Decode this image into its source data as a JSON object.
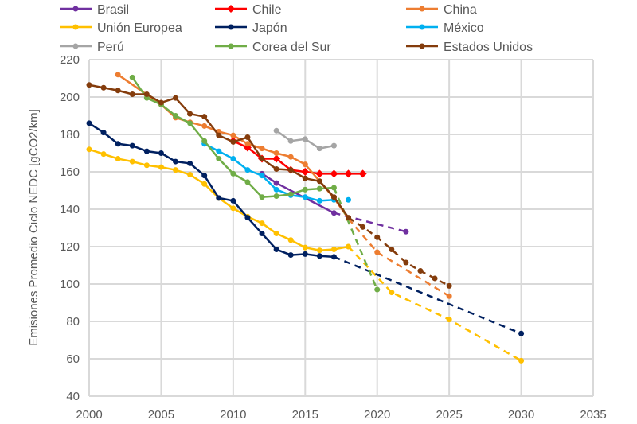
{
  "chart_data": {
    "type": "line",
    "title": "",
    "xlabel": "",
    "ylabel": "Emisiones Promedio Ciclo NEDC [gCO2/km]",
    "xlim": [
      2000,
      2035
    ],
    "ylim": [
      40,
      220
    ],
    "xticks": [
      "2000",
      "2005",
      "2010",
      "2015",
      "2020",
      "2025",
      "2030",
      "2035"
    ],
    "yticks": [
      "40",
      "60",
      "80",
      "100",
      "120",
      "140",
      "160",
      "180",
      "200",
      "220"
    ],
    "grid": true,
    "legend_position": "top",
    "series": [
      {
        "name": "Brasil",
        "color": "#7030A0",
        "marker": "circle",
        "x": [
          2012,
          2013,
          2017
        ],
        "values": [
          159,
          154,
          138
        ],
        "projection_x": [
          2017,
          2022
        ],
        "projection": [
          138,
          128
        ]
      },
      {
        "name": "Chile",
        "color": "#FF0000",
        "marker": "diamond",
        "x": [
          2010,
          2011,
          2012,
          2013,
          2014,
          2015,
          2016,
          2017,
          2018,
          2019
        ],
        "values": [
          176.5,
          173,
          167,
          167,
          161,
          160,
          159,
          159,
          159,
          159
        ]
      },
      {
        "name": "China",
        "color": "#ED7D31",
        "marker": "circle",
        "x": [
          2002,
          2005,
          2006,
          2007,
          2008,
          2009,
          2010,
          2011,
          2012,
          2013,
          2014,
          2015,
          2017,
          2018
        ],
        "values": [
          212,
          196,
          189,
          186.5,
          184.5,
          181.5,
          179.5,
          175,
          172.5,
          170,
          168,
          164,
          146,
          135
        ],
        "projection_x": [
          2018,
          2020,
          2025
        ],
        "projection": [
          135,
          117,
          93.5
        ]
      },
      {
        "name": "Unión Europea",
        "color": "#FFC000",
        "marker": "circle",
        "x": [
          2000,
          2001,
          2002,
          2003,
          2004,
          2005,
          2006,
          2007,
          2008,
          2009,
          2010,
          2011,
          2012,
          2013,
          2014,
          2015,
          2016,
          2017,
          2018
        ],
        "values": [
          172,
          169.5,
          167,
          165.5,
          163.5,
          162.5,
          161,
          158.5,
          153.5,
          146,
          140.5,
          136,
          132.5,
          127,
          123.5,
          119.5,
          118,
          118.5,
          120
        ],
        "projection_x": [
          2018,
          2021,
          2025,
          2030
        ],
        "projection": [
          120,
          95.5,
          81,
          59
        ]
      },
      {
        "name": "Japón",
        "color": "#002060",
        "marker": "circle",
        "x": [
          2000,
          2001,
          2002,
          2003,
          2004,
          2005,
          2006,
          2007,
          2008,
          2009,
          2010,
          2011,
          2012,
          2013,
          2014,
          2015,
          2016,
          2017
        ],
        "values": [
          186,
          181,
          175,
          174,
          171,
          170,
          165.5,
          164.5,
          158,
          146,
          144.5,
          135.5,
          127,
          118.5,
          115.5,
          116,
          115,
          114.5
        ],
        "projection_x": [
          2017,
          2030
        ],
        "projection": [
          114.5,
          73.5
        ]
      },
      {
        "name": "México",
        "color": "#00B0F0",
        "marker": "circle",
        "x": [
          2008,
          2009,
          2010,
          2011,
          2012,
          2013,
          2014,
          2015,
          2016,
          2017
        ],
        "values": [
          175,
          171,
          167,
          161,
          158,
          150.5,
          147.5,
          146.5,
          144.5,
          145
        ],
        "extra_x": [
          2018
        ],
        "extra": [
          145
        ]
      },
      {
        "name": "Perú",
        "color": "#A5A5A5",
        "marker": "circle",
        "x": [
          2013,
          2014,
          2015,
          2016,
          2017
        ],
        "values": [
          182,
          176.5,
          177.5,
          172.5,
          174
        ]
      },
      {
        "name": "Corea del Sur",
        "color": "#70AD47",
        "marker": "circle",
        "x": [
          2003,
          2004,
          2005,
          2006,
          2007,
          2008,
          2009,
          2010,
          2011,
          2012,
          2013,
          2014,
          2015,
          2016,
          2017
        ],
        "values": [
          210.5,
          199.5,
          196,
          190,
          186,
          176.5,
          167,
          159,
          154.5,
          146.5,
          147,
          148,
          150.5,
          151,
          151.5
        ],
        "projection_x": [
          2017,
          2020
        ],
        "projection": [
          151.5,
          97
        ]
      },
      {
        "name": "Estados Unidos",
        "color": "#843C0C",
        "marker": "circle",
        "x": [
          2000,
          2001,
          2002,
          2003,
          2004,
          2005,
          2006,
          2007,
          2008,
          2009,
          2010,
          2011,
          2012,
          2013,
          2014,
          2015,
          2016,
          2017,
          2018
        ],
        "values": [
          206.5,
          205,
          203.5,
          201.5,
          201.5,
          197,
          199.5,
          191,
          189.5,
          179.5,
          176,
          178.5,
          167,
          161.5,
          161,
          156.5,
          155,
          146.5,
          135.5
        ],
        "projection_x": [
          2018,
          2019,
          2020,
          2021,
          2022,
          2023,
          2024,
          2025
        ],
        "projection": [
          135.5,
          130.5,
          125,
          118.5,
          111.5,
          107,
          103,
          99
        ]
      }
    ]
  }
}
